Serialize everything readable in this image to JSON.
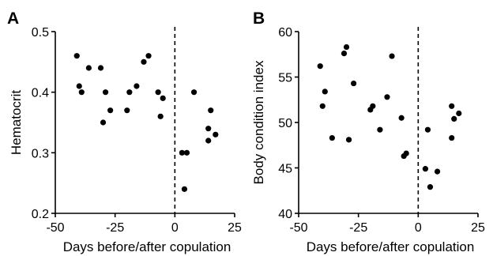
{
  "chart_data": [
    {
      "panel": "A",
      "type": "scatter",
      "xlabel": "Days before/after copulation",
      "ylabel": "Hematocrit",
      "xlim": [
        -50,
        25
      ],
      "ylim": [
        0.2,
        0.5
      ],
      "xticks": [
        -50,
        -25,
        0,
        25
      ],
      "yticks": [
        0.2,
        0.3,
        0.4,
        0.5
      ],
      "x_tick_labels": [
        "-50",
        "-25",
        "0",
        "25"
      ],
      "y_tick_labels": [
        "0.2",
        "0.3",
        "0.4",
        "0.5"
      ],
      "reference_line_x": 0,
      "grid": false,
      "points": [
        {
          "x": -41,
          "y": 0.46
        },
        {
          "x": -40,
          "y": 0.41
        },
        {
          "x": -39,
          "y": 0.4
        },
        {
          "x": -36,
          "y": 0.44
        },
        {
          "x": -31,
          "y": 0.44
        },
        {
          "x": -30,
          "y": 0.35
        },
        {
          "x": -29,
          "y": 0.4
        },
        {
          "x": -27,
          "y": 0.37
        },
        {
          "x": -20,
          "y": 0.37
        },
        {
          "x": -19,
          "y": 0.4
        },
        {
          "x": -16,
          "y": 0.41
        },
        {
          "x": -13,
          "y": 0.45
        },
        {
          "x": -11,
          "y": 0.46
        },
        {
          "x": -7,
          "y": 0.4
        },
        {
          "x": -6,
          "y": 0.36
        },
        {
          "x": -5,
          "y": 0.39
        },
        {
          "x": 3,
          "y": 0.3
        },
        {
          "x": 4,
          "y": 0.24
        },
        {
          "x": 5,
          "y": 0.3
        },
        {
          "x": 8,
          "y": 0.4
        },
        {
          "x": 14,
          "y": 0.34
        },
        {
          "x": 14,
          "y": 0.32
        },
        {
          "x": 15,
          "y": 0.37
        },
        {
          "x": 17,
          "y": 0.33
        }
      ]
    },
    {
      "panel": "B",
      "type": "scatter",
      "xlabel": "Days before/after copulation",
      "ylabel": "Body condition index",
      "xlim": [
        -50,
        25
      ],
      "ylim": [
        40,
        60
      ],
      "xticks": [
        -50,
        -25,
        0,
        25
      ],
      "yticks": [
        40,
        45,
        50,
        55,
        60
      ],
      "x_tick_labels": [
        "-50",
        "-25",
        "0",
        "25"
      ],
      "y_tick_labels": [
        "40",
        "45",
        "50",
        "55",
        "60"
      ],
      "reference_line_x": 0,
      "grid": false,
      "points": [
        {
          "x": -41,
          "y": 56.2
        },
        {
          "x": -40,
          "y": 51.8
        },
        {
          "x": -39,
          "y": 53.4
        },
        {
          "x": -36,
          "y": 48.3
        },
        {
          "x": -31,
          "y": 57.6
        },
        {
          "x": -30,
          "y": 58.3
        },
        {
          "x": -29,
          "y": 48.1
        },
        {
          "x": -27,
          "y": 54.3
        },
        {
          "x": -20,
          "y": 51.4
        },
        {
          "x": -19,
          "y": 51.8
        },
        {
          "x": -16,
          "y": 49.2
        },
        {
          "x": -13,
          "y": 52.8
        },
        {
          "x": -11,
          "y": 57.3
        },
        {
          "x": -7,
          "y": 50.5
        },
        {
          "x": -6,
          "y": 46.3
        },
        {
          "x": -5,
          "y": 46.6
        },
        {
          "x": 3,
          "y": 44.9
        },
        {
          "x": 4,
          "y": 49.2
        },
        {
          "x": 5,
          "y": 42.9
        },
        {
          "x": 8,
          "y": 44.6
        },
        {
          "x": 14,
          "y": 51.8
        },
        {
          "x": 14,
          "y": 48.3
        },
        {
          "x": 15,
          "y": 50.4
        },
        {
          "x": 17,
          "y": 51.0
        }
      ]
    }
  ]
}
